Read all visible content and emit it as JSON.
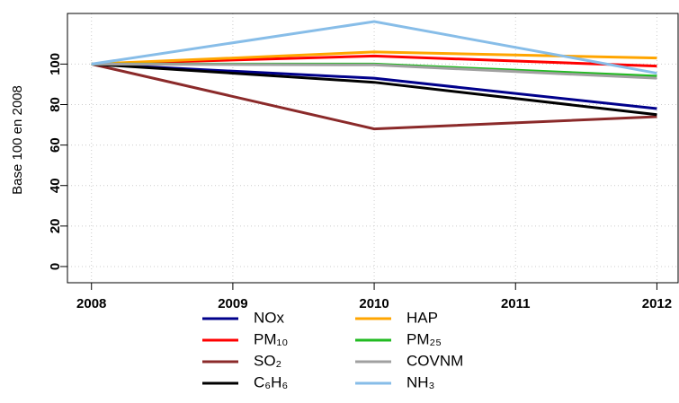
{
  "chart_data": {
    "type": "line",
    "y_label": "Base 100 en 2008",
    "x": [
      2008,
      2010,
      2012
    ],
    "xlim": [
      2007.83,
      2012.15
    ],
    "xticks": [
      2008,
      2009,
      2010,
      2011,
      2012
    ],
    "ylim": [
      -8,
      125
    ],
    "yticks": [
      0,
      20,
      40,
      60,
      80,
      100
    ],
    "grid": true,
    "series": [
      {
        "name": "NOx",
        "color": "#00008b",
        "values": [
          100,
          93,
          78
        ]
      },
      {
        "name": "PM₁₀",
        "color": "#ff0000",
        "values": [
          100,
          104,
          99
        ]
      },
      {
        "name": "SO₂",
        "color": "#8b2a2a",
        "values": [
          100,
          68,
          74
        ]
      },
      {
        "name": "C₆H₆",
        "color": "#000000",
        "values": [
          100,
          91,
          75
        ]
      },
      {
        "name": "HAP",
        "color": "#ffa500",
        "values": [
          100,
          106,
          103
        ]
      },
      {
        "name": "PM₂₅",
        "color": "#22bb22",
        "values": [
          100,
          100,
          94
        ]
      },
      {
        "name": "COVNM",
        "color": "#a0a0a0",
        "values": [
          100,
          99.6,
          93
        ]
      },
      {
        "name": "NH₃",
        "color": "#87bde8",
        "values": [
          100,
          121,
          95.5
        ]
      }
    ]
  }
}
